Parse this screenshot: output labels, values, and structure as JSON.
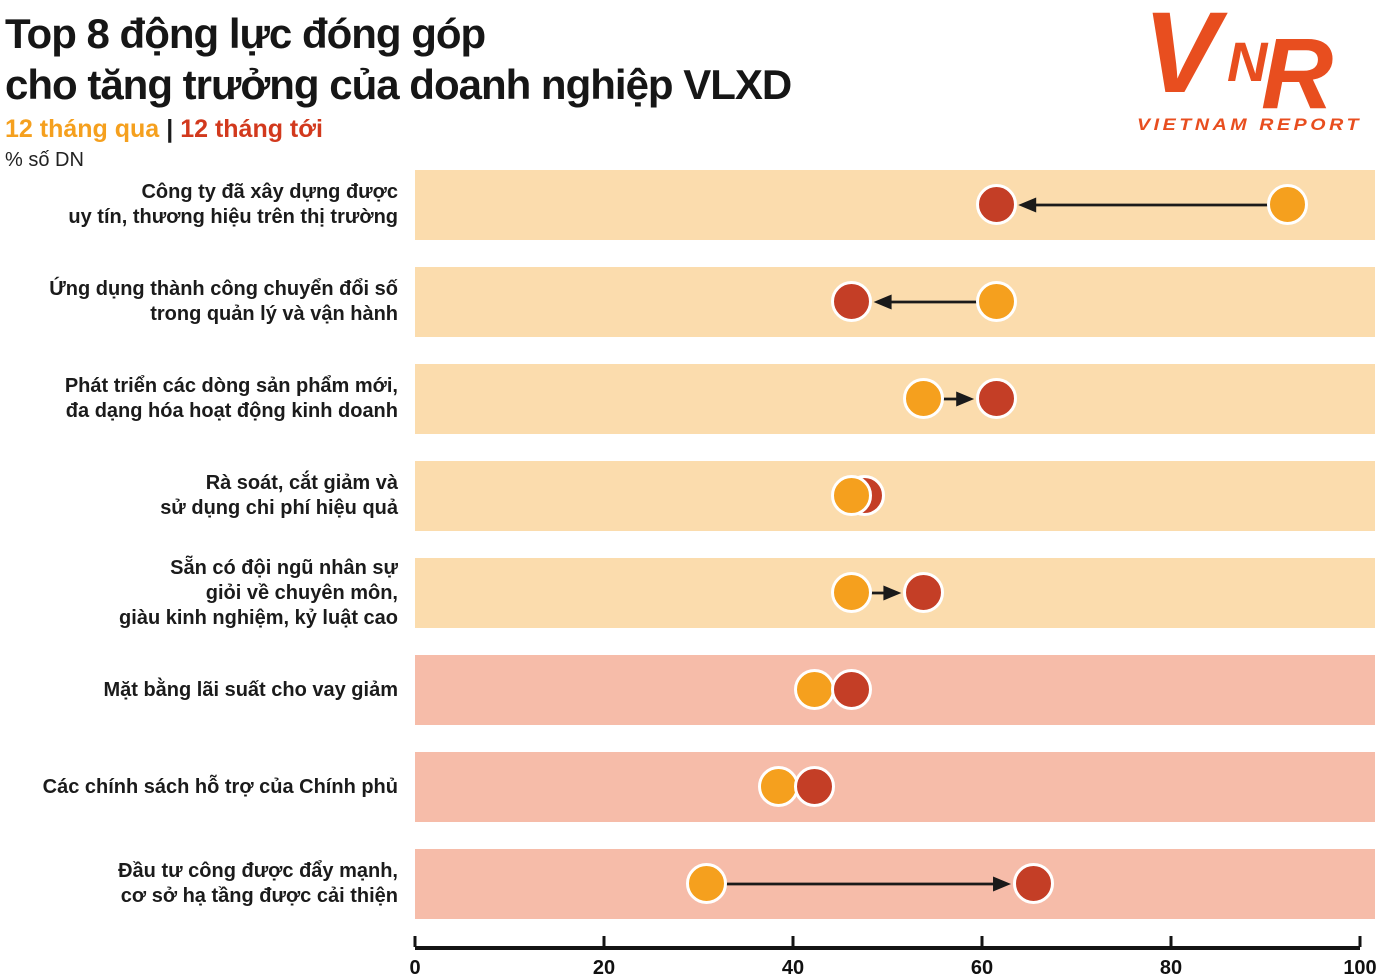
{
  "header": {
    "title_line1": "Top 8 động lực đóng góp",
    "title_line2": "cho tăng trưởng của doanh nghiệp VLXD",
    "legend": {
      "past_label": "12 tháng qua",
      "separator": "|",
      "future_label": "12 tháng tới"
    },
    "unit_label": "% số DN",
    "logo": {
      "text": "VNR",
      "subtext": "VIETNAM REPORT"
    }
  },
  "colors": {
    "past_dot": "#F5A01E",
    "future_dot": "#C43E26",
    "band_internal": "#FBDCAD",
    "band_external": "#F6BCA9",
    "legend_past": "#F5A01E",
    "legend_future": "#D2391D",
    "logo": "#E84E1F",
    "axis": "#141414",
    "arrow": "#1a1a1a"
  },
  "chart_data": {
    "type": "dumbbell",
    "title": "Top 8 động lực đóng góp cho tăng trưởng của doanh nghiệp VLXD",
    "unit": "% số DN",
    "xlim": [
      0,
      100
    ],
    "xticks": [
      0,
      20,
      40,
      60,
      80,
      100
    ],
    "legend_position": "top-left",
    "series": [
      {
        "name": "12 tháng qua",
        "color": "#F5A01E",
        "values": [
          92.3,
          61.5,
          53.8,
          46.2,
          46.2,
          42.3,
          38.5,
          30.8
        ]
      },
      {
        "name": "12 tháng tới",
        "color": "#C43E26",
        "values": [
          61.5,
          46.2,
          61.5,
          47.6,
          53.8,
          46.2,
          42.3,
          65.4
        ]
      }
    ],
    "categories": [
      "Công ty đã xây dựng được uy tín, thương hiệu trên thị trường",
      "Ứng dụng thành công chuyển đổi số trong quản lý và vận hành",
      "Phát triển các dòng sản phẩm mới, đa dạng hóa hoạt động kinh doanh",
      "Rà soát, cắt giảm và sử dụng chi phí hiệu quả",
      "Sẵn có đội ngũ nhân sự giỏi về chuyên môn, giàu kinh nghiệm, kỷ luật cao",
      "Mặt bằng lãi suất cho vay giảm",
      "Các chính sách hỗ trợ của Chính phủ",
      "Đầu tư công được đẩy mạnh, cơ sở hạ tầng được cải thiện"
    ],
    "band_colors": {
      "internal": "#FBDCAD",
      "external": "#F6BCA9"
    },
    "rows": [
      {
        "label_lines": [
          "Công ty đã xây dựng được",
          "uy tín, thương hiệu trên thị trường"
        ],
        "band": "internal",
        "arrow": true,
        "front": "future"
      },
      {
        "label_lines": [
          "Ứng dụng thành công chuyển đổi số",
          "trong quản lý và vận hành"
        ],
        "band": "internal",
        "arrow": true,
        "front": "future"
      },
      {
        "label_lines": [
          "Phát triển các dòng sản phẩm mới,",
          "đa dạng hóa hoạt động kinh doanh"
        ],
        "band": "internal",
        "arrow": true,
        "front": "future"
      },
      {
        "label_lines": [
          "Rà soát, cắt giảm và",
          "sử dụng chi phí hiệu quả"
        ],
        "band": "internal",
        "arrow": false,
        "front": "past"
      },
      {
        "label_lines": [
          "Sẵn có đội ngũ nhân sự",
          "giỏi về chuyên môn,",
          "giàu kinh nghiệm, kỷ luật cao"
        ],
        "band": "internal",
        "arrow": true,
        "front": "future"
      },
      {
        "label_lines": [
          "Mặt bằng lãi suất cho vay giảm"
        ],
        "band": "external",
        "arrow": false,
        "front": "future"
      },
      {
        "label_lines": [
          "Các chính sách hỗ trợ của Chính phủ"
        ],
        "band": "external",
        "arrow": false,
        "front": "future"
      },
      {
        "label_lines": [
          "Đầu tư công được đẩy mạnh,",
          "cơ sở hạ tầng được cải thiện"
        ],
        "band": "external",
        "arrow": true,
        "front": "future"
      }
    ]
  }
}
